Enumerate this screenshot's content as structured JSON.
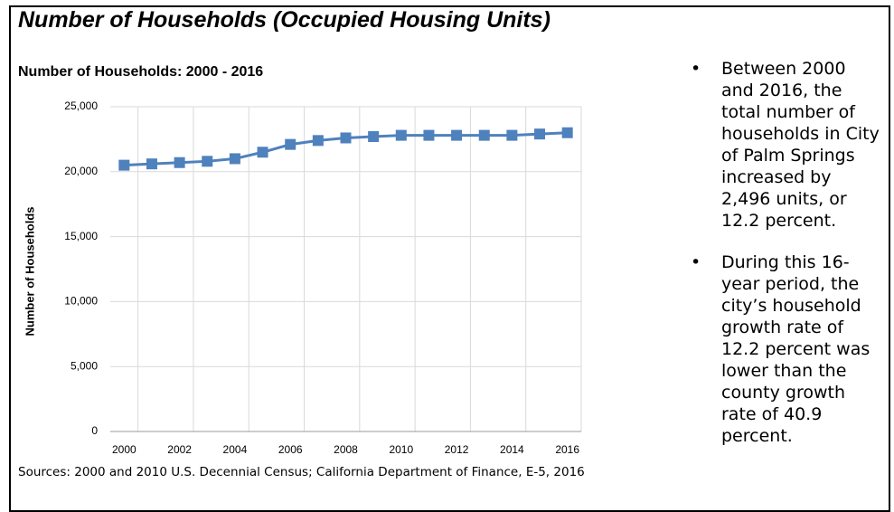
{
  "header": {
    "title": "Number of Households (Occupied Housing Units)"
  },
  "chart_data": {
    "type": "line",
    "title": "Number of Households: 2000 - 2016",
    "ylabel": "Number of Households",
    "x": [
      2000,
      2001,
      2002,
      2003,
      2004,
      2005,
      2006,
      2007,
      2008,
      2009,
      2010,
      2011,
      2012,
      2013,
      2014,
      2015,
      2016
    ],
    "series": [
      {
        "name": "Number of Households",
        "color": "#4f81bd",
        "values": [
          20500,
          20600,
          20700,
          20800,
          21000,
          21500,
          22100,
          22400,
          22600,
          22700,
          22800,
          22800,
          22800,
          22800,
          22800,
          22900,
          23000
        ]
      }
    ],
    "xlim": [
      1999.5,
      2016.5
    ],
    "xticks": [
      2000,
      2002,
      2004,
      2006,
      2008,
      2010,
      2012,
      2014,
      2016
    ],
    "ylim": [
      0,
      25000
    ],
    "yticks": [
      0,
      {
        "value": 5000,
        "label": "5,000"
      },
      {
        "value": 10000,
        "label": "10,000"
      },
      {
        "value": 15000,
        "label": "15,000"
      },
      {
        "value": 20000,
        "label": "20,000"
      },
      {
        "value": 25000,
        "label": "25,000"
      }
    ],
    "grid": true
  },
  "source": "Sources: 2000 and 2010 U.S. Decennial Census; California Department of Finance, E-5, 2016",
  "bullets": [
    "Between 2000 and 2016, the total number of households in City of Palm Springs increased by 2,496 units, or 12.2 percent.",
    "During this 16-year period, the city’s household growth rate of 12.2 percent was lower than the county growth rate of 40.9 percent."
  ]
}
